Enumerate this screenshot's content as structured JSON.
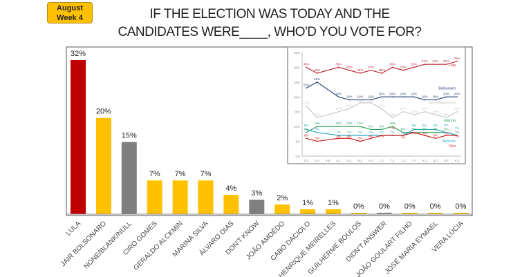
{
  "badge": {
    "line1": "August",
    "line2": "Week 4"
  },
  "title": {
    "line1": "IF THE ELECTION WAS TODAY AND THE",
    "line2": "CANDIDATES WERE____, WHO'D YOU VOTE FOR?"
  },
  "colors": {
    "lula": "#c00000",
    "candidate": "#ffc000",
    "other": "#7f7f7f"
  },
  "chart_data": [
    {
      "type": "bar",
      "categories": [
        "LULA",
        "JAIR BOLSONARO",
        "NONE/BLANK/NULL",
        "CIRO GOMES",
        "GERALDO ALCKMIN",
        "MARINA SILVA",
        "ÁLVARO DIAS",
        "DON'T KNOW",
        "JOÃO AMOÊDO",
        "CABO DACIOLO",
        "HENRIQUE MEIRELLES",
        "GUILHERME BOULOS",
        "DIDN'T ANSWER",
        "JOÃO GOULART FILHO",
        "JOSÉ MARIA EYMAEL",
        "VERA LÚCIA"
      ],
      "values": [
        32,
        20,
        15,
        7,
        7,
        7,
        4,
        3,
        2,
        1,
        1,
        0,
        0,
        0,
        0,
        0
      ],
      "labels": [
        "32%",
        "20%",
        "15%",
        "7%",
        "7%",
        "7%",
        "4%",
        "3%",
        "2%",
        "1%",
        "1%",
        "0%",
        "0%",
        "0%",
        "0%",
        "0%"
      ],
      "bar_colors": [
        "#c00000",
        "#ffc000",
        "#7f7f7f",
        "#ffc000",
        "#ffc000",
        "#ffc000",
        "#ffc000",
        "#7f7f7f",
        "#ffc000",
        "#ffc000",
        "#ffc000",
        "#ffc000",
        "#7f7f7f",
        "#ffc000",
        "#ffc000",
        "#ffc000"
      ],
      "ylim": [
        0,
        35
      ]
    },
    {
      "type": "line",
      "x": [
        "5,3",
        "5,4",
        "5,5",
        "6,1",
        "6,2",
        "6,3",
        "6,4",
        "7,1",
        "7,2",
        "7,3",
        "7,4",
        "8,1",
        "8,2",
        "8,3",
        "8,4"
      ],
      "ylim": [
        0,
        35
      ],
      "yticks": [
        "0%",
        "5%",
        "10%",
        "15%",
        "20%",
        "25%",
        "30%",
        "35%"
      ],
      "grid": false,
      "series": [
        {
          "name": "Lula",
          "color": "#c0283a",
          "values": [
            30,
            28,
            null,
            30,
            29,
            28,
            29,
            28,
            30,
            29,
            30,
            31,
            31,
            31,
            32
          ]
        },
        {
          "name": "Bolsonaro",
          "color": "#2e4a7a",
          "values": [
            23,
            25,
            null,
            20,
            19,
            19,
            19,
            20,
            20,
            20,
            20,
            19,
            19,
            20,
            20
          ]
        },
        {
          "name": "None/Blank/Null",
          "color": "#c8c8c8",
          "values": [
            17,
            13,
            null,
            15,
            16,
            18,
            18,
            16,
            13,
            15,
            14,
            15,
            14,
            13,
            15
          ]
        },
        {
          "name": "Marina",
          "color": "#2ea05a",
          "values": [
            8,
            10,
            null,
            10,
            10,
            10,
            9,
            9,
            10,
            8,
            8,
            8,
            8,
            8,
            7
          ]
        },
        {
          "name": "Alckmin",
          "color": "#2aa8c8",
          "values": [
            9,
            8,
            null,
            7,
            7,
            7,
            7,
            7,
            7,
            7,
            9,
            9,
            9,
            8,
            7
          ]
        },
        {
          "name": "Ciro",
          "color": "#d02020",
          "values": [
            6,
            5,
            null,
            6,
            6,
            5,
            6,
            7,
            7,
            7,
            8,
            7,
            6,
            7,
            7
          ]
        }
      ]
    }
  ]
}
